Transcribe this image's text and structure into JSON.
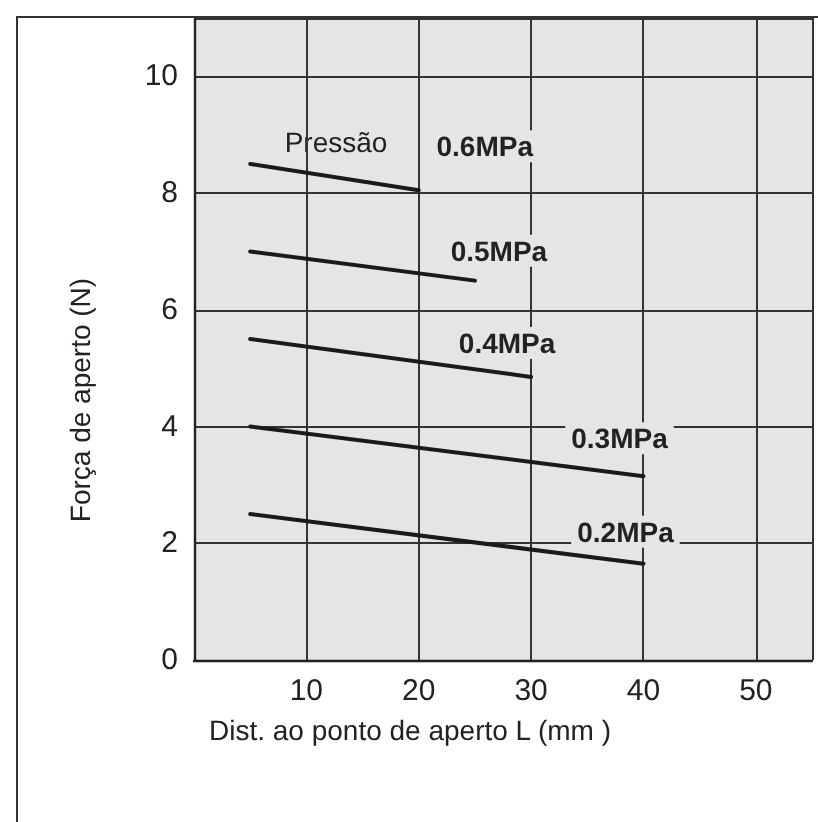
{
  "chart_data": {
    "type": "line",
    "xlabel": "Dist. ao ponto de aperto L (mm )",
    "ylabel": "Força de aperto (N)",
    "annotations": [
      "Pressão"
    ],
    "xlim": [
      0,
      55
    ],
    "ylim": [
      0,
      11
    ],
    "xticks": [
      10,
      20,
      30,
      40,
      50
    ],
    "yticks": [
      0,
      2,
      4,
      6,
      8,
      10
    ],
    "grid": true,
    "marker": "none",
    "line_style": "solid",
    "series": [
      {
        "name": "0.6MPa",
        "color": "#1a1a1a",
        "x": [
          5,
          20
        ],
        "values": [
          8.5,
          8.05
        ]
      },
      {
        "name": "0.5MPa",
        "color": "#1a1a1a",
        "x": [
          5,
          25
        ],
        "values": [
          7.0,
          6.5
        ]
      },
      {
        "name": "0.4MPa",
        "color": "#1a1a1a",
        "x": [
          5,
          30
        ],
        "values": [
          5.5,
          4.85
        ]
      },
      {
        "name": "0.3MPa",
        "color": "#1a1a1a",
        "x": [
          5,
          40
        ],
        "values": [
          4.0,
          3.15
        ]
      },
      {
        "name": "0.2MPa",
        "color": "#1a1a1a",
        "x": [
          5,
          40
        ],
        "values": [
          2.5,
          1.65
        ]
      }
    ]
  }
}
